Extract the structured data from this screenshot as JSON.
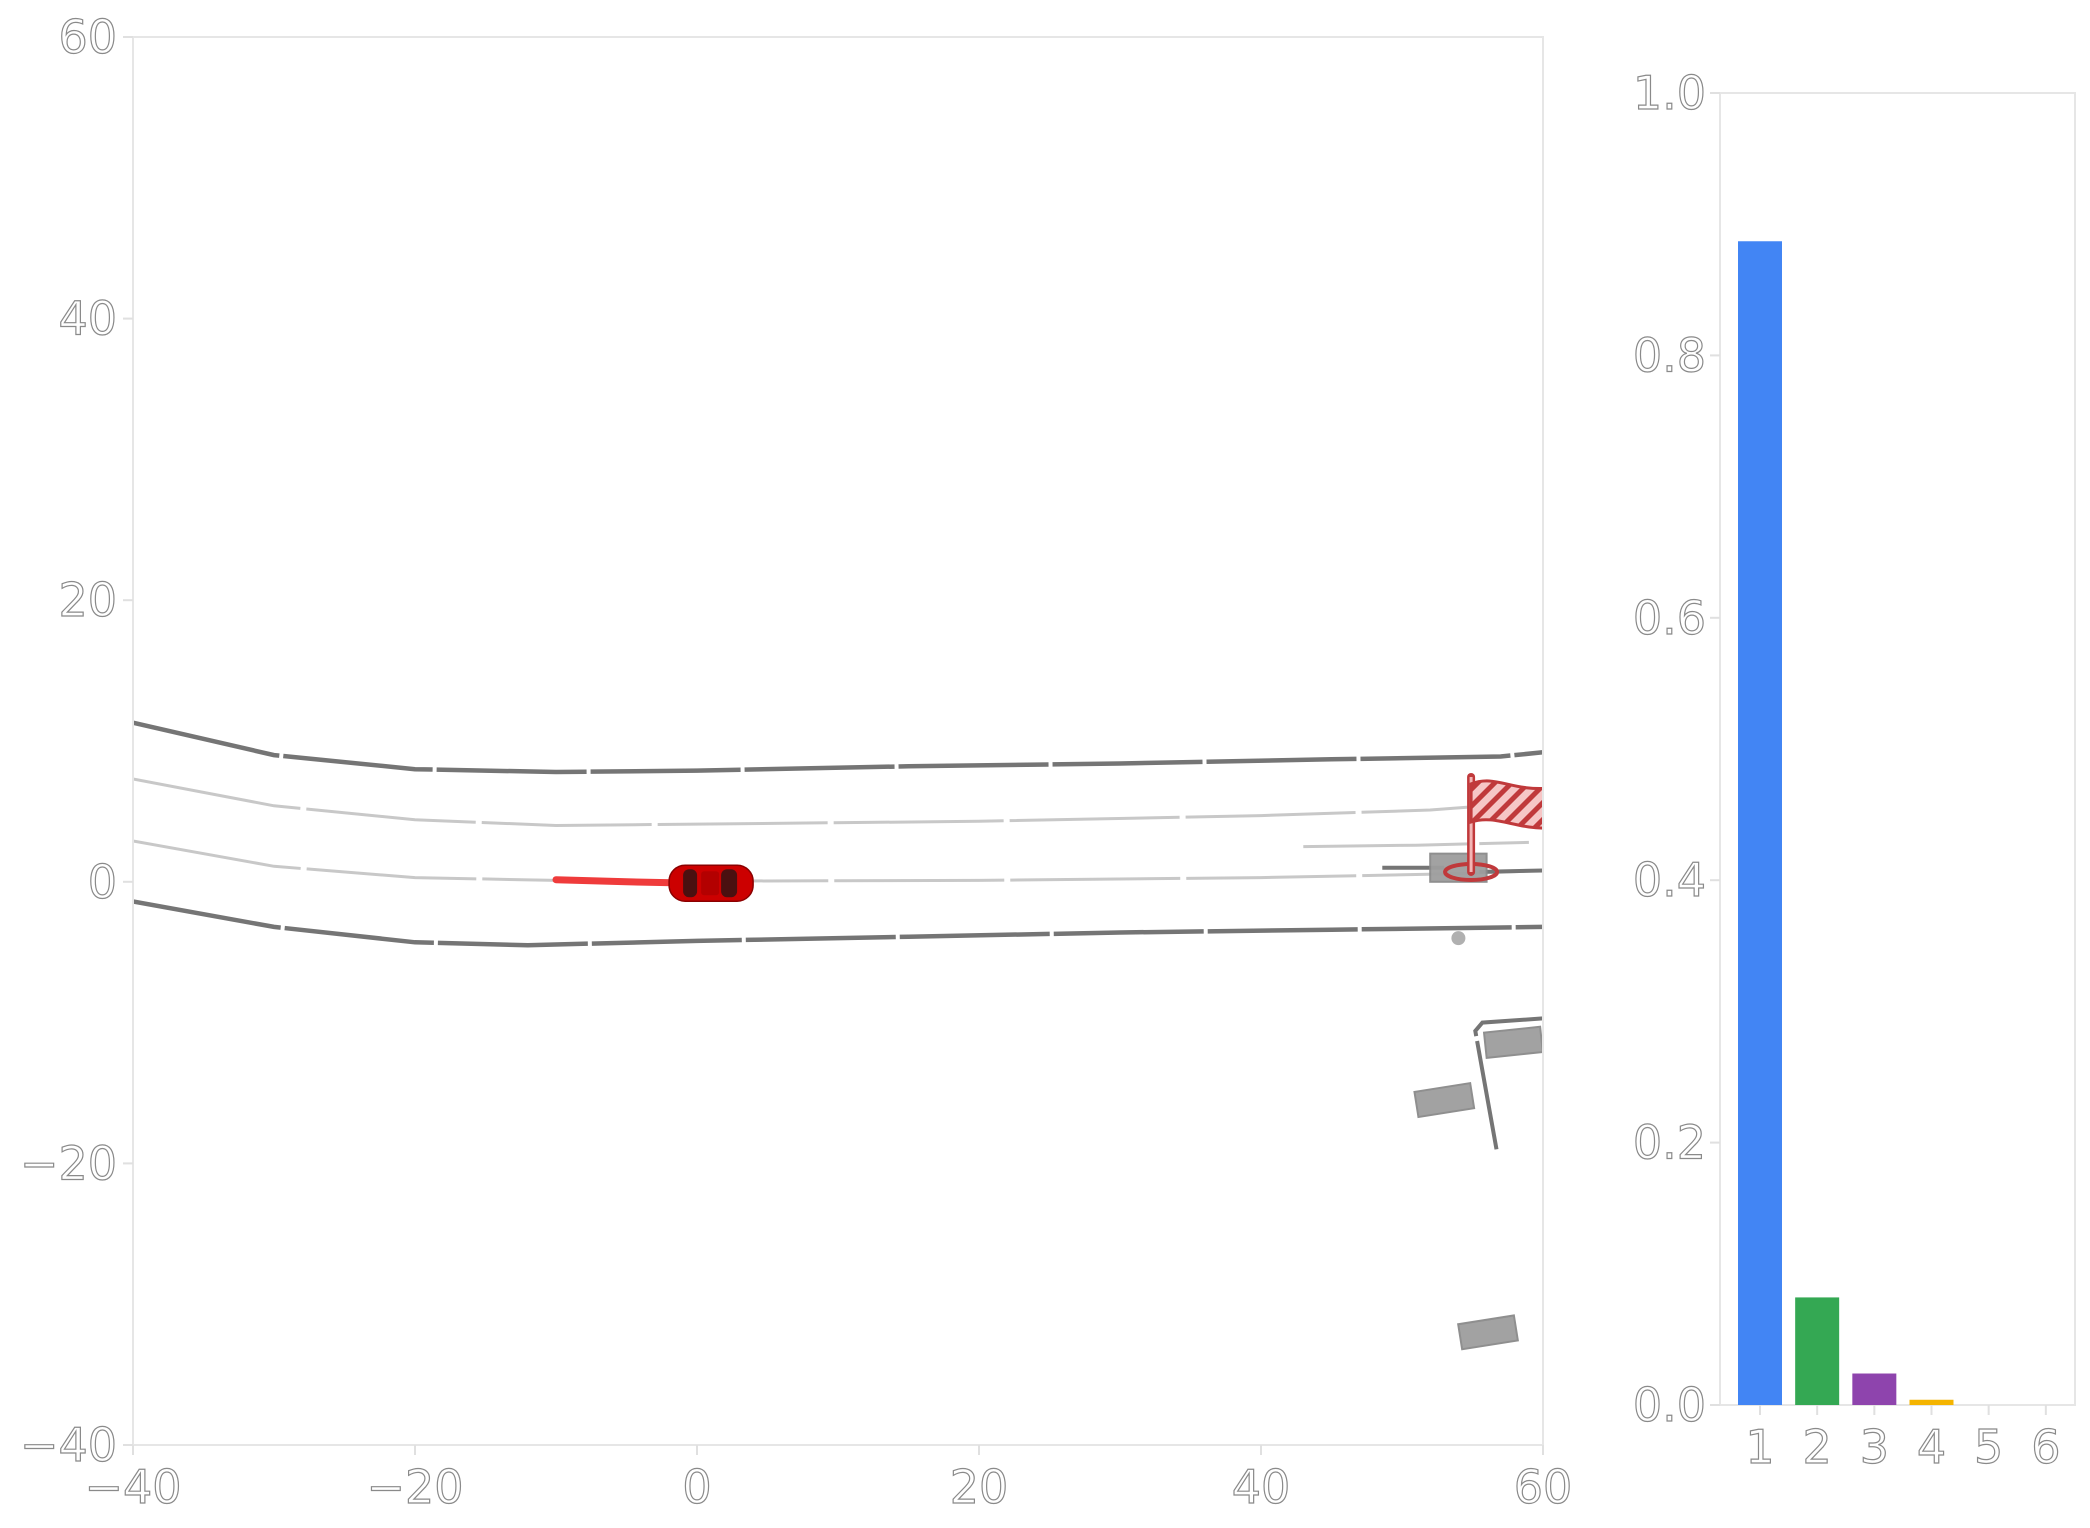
{
  "colors": {
    "road_edge": "#757575",
    "lane_center": "#c8c8c8",
    "ego_vehicle": "#cc0000",
    "ego_trail": "#ef3b3b",
    "goal_flag": "#c0393b",
    "obstacle": "#9e9e9e"
  },
  "chart_data": [
    {
      "type": "scatter",
      "title": "",
      "xlabel": "",
      "ylabel": "",
      "xlim": [
        -40,
        60
      ],
      "ylim": [
        -40,
        60
      ],
      "x_ticks": [
        "−40",
        "−20",
        "0",
        "20",
        "40",
        "60"
      ],
      "y_ticks": [
        "−40",
        "−20",
        "0",
        "20",
        "40",
        "60"
      ],
      "grid": false,
      "road_edges": [
        [
          [
            -40,
            11.3
          ],
          [
            -30,
            9.0
          ],
          [
            -20,
            8.0
          ],
          [
            -10,
            7.8
          ],
          [
            0,
            7.9
          ],
          [
            15,
            8.2
          ],
          [
            30,
            8.4
          ],
          [
            45,
            8.7
          ],
          [
            57,
            8.9
          ],
          [
            60,
            9.2
          ]
        ],
        [
          [
            -40,
            -1.4
          ],
          [
            -30,
            -3.2
          ],
          [
            -20,
            -4.3
          ],
          [
            -12,
            -4.5
          ],
          [
            0,
            -4.2
          ],
          [
            15,
            -3.9
          ],
          [
            30,
            -3.6
          ],
          [
            45,
            -3.4
          ],
          [
            60,
            -3.2
          ]
        ]
      ],
      "lane_centerlines": [
        [
          [
            -40,
            7.3
          ],
          [
            -30,
            5.4
          ],
          [
            -20,
            4.4
          ],
          [
            -10,
            4.0
          ],
          [
            0,
            4.1
          ],
          [
            20,
            4.3
          ],
          [
            40,
            4.7
          ],
          [
            52,
            5.1
          ],
          [
            56,
            5.4
          ]
        ],
        [
          [
            -40,
            2.9
          ],
          [
            -30,
            1.1
          ],
          [
            -20,
            0.3
          ],
          [
            -10,
            0.1
          ],
          [
            0,
            0.05
          ],
          [
            20,
            0.1
          ],
          [
            40,
            0.3
          ],
          [
            55,
            0.6
          ],
          [
            60,
            0.8
          ]
        ],
        [
          [
            43,
            2.5
          ],
          [
            51,
            2.6
          ],
          [
            59,
            2.8
          ]
        ]
      ],
      "right_side_lines": [
        [
          [
            48.6,
            1.0
          ],
          [
            53.0,
            1.0
          ]
        ],
        [
          [
            55.5,
            0.7
          ],
          [
            60,
            0.8
          ]
        ]
      ],
      "curb": [
        [
          56.7,
          -19.0
        ],
        [
          55.2,
          -10.6
        ],
        [
          55.7,
          -10.0
        ],
        [
          60,
          -9.7
        ]
      ],
      "ego_trail": [
        [
          -10,
          0.15
        ],
        [
          -5,
          0.0
        ],
        [
          0,
          -0.1
        ]
      ],
      "ego_vehicle": {
        "x": 1.0,
        "y": -0.1,
        "heading_deg": 0
      },
      "goal": {
        "x": 54.9,
        "y": 0.7
      },
      "obstacles": [
        {
          "x": 54.0,
          "y": 1.0,
          "w": 4.0,
          "h": 2.0,
          "angle": 0
        },
        {
          "x": 53.0,
          "y": -15.5,
          "w": 4.0,
          "h": 1.8,
          "angle": -9
        },
        {
          "x": 57.9,
          "y": -11.4,
          "w": 4.0,
          "h": 1.8,
          "angle": -6
        },
        {
          "x": 56.1,
          "y": -32.0,
          "w": 4.0,
          "h": 1.8,
          "angle": -9
        }
      ],
      "pedestrian": {
        "x": 54.0,
        "y": -4.0
      }
    },
    {
      "type": "bar",
      "title": "",
      "xlabel": "",
      "ylabel": "",
      "categories": [
        "1",
        "2",
        "3",
        "4",
        "5",
        "6"
      ],
      "values": [
        0.887,
        0.082,
        0.024,
        0.004,
        0.0,
        0.0
      ],
      "bar_colors": [
        "#4285f4",
        "#34a853",
        "#8e44ad",
        "#f4b400",
        "#9e9e9e",
        "#9e9e9e"
      ],
      "ylim": [
        0.0,
        1.0
      ],
      "y_ticks": [
        "0.0",
        "0.2",
        "0.4",
        "0.6",
        "0.8",
        "1.0"
      ],
      "grid": false
    }
  ]
}
